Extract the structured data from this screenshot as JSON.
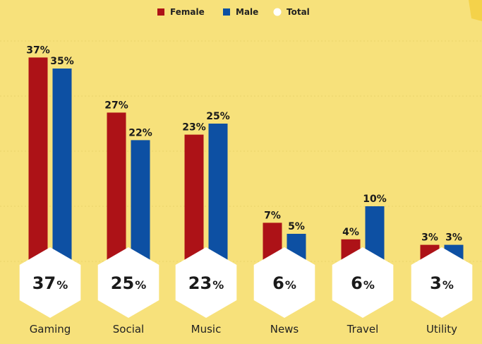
{
  "chart_data": {
    "type": "bar",
    "categories": [
      "Gaming",
      "Social",
      "Music",
      "News",
      "Travel",
      "Utility"
    ],
    "series": [
      {
        "name": "Female",
        "values": [
          37,
          27,
          23,
          7,
          4,
          3
        ],
        "labels": [
          "37%",
          "27%",
          "23%",
          "7%",
          "4%",
          "3%"
        ],
        "color": "#ad1217"
      },
      {
        "name": "Male",
        "values": [
          35,
          22,
          25,
          5,
          10,
          3
        ],
        "labels": [
          "35%",
          "22%",
          "25%",
          "5%",
          "10%",
          "3%"
        ],
        "color": "#0d50a3"
      }
    ],
    "totals": {
      "name": "Total",
      "values": [
        37,
        25,
        23,
        6,
        6,
        3
      ],
      "numbers": [
        "37",
        "25",
        "23",
        "6",
        "6",
        "3"
      ],
      "unit": "%"
    },
    "legend": [
      {
        "label": "Female",
        "color": "#ad1217",
        "marker": "square"
      },
      {
        "label": "Male",
        "color": "#0d50a3",
        "marker": "square"
      },
      {
        "label": "Total",
        "color": "#ffffff",
        "marker": "circle"
      }
    ],
    "legend_placement": "top-center",
    "grid": true,
    "ylim": [
      0,
      40
    ],
    "background_color": "#f7e17b",
    "grid_color": "#ead46a"
  }
}
